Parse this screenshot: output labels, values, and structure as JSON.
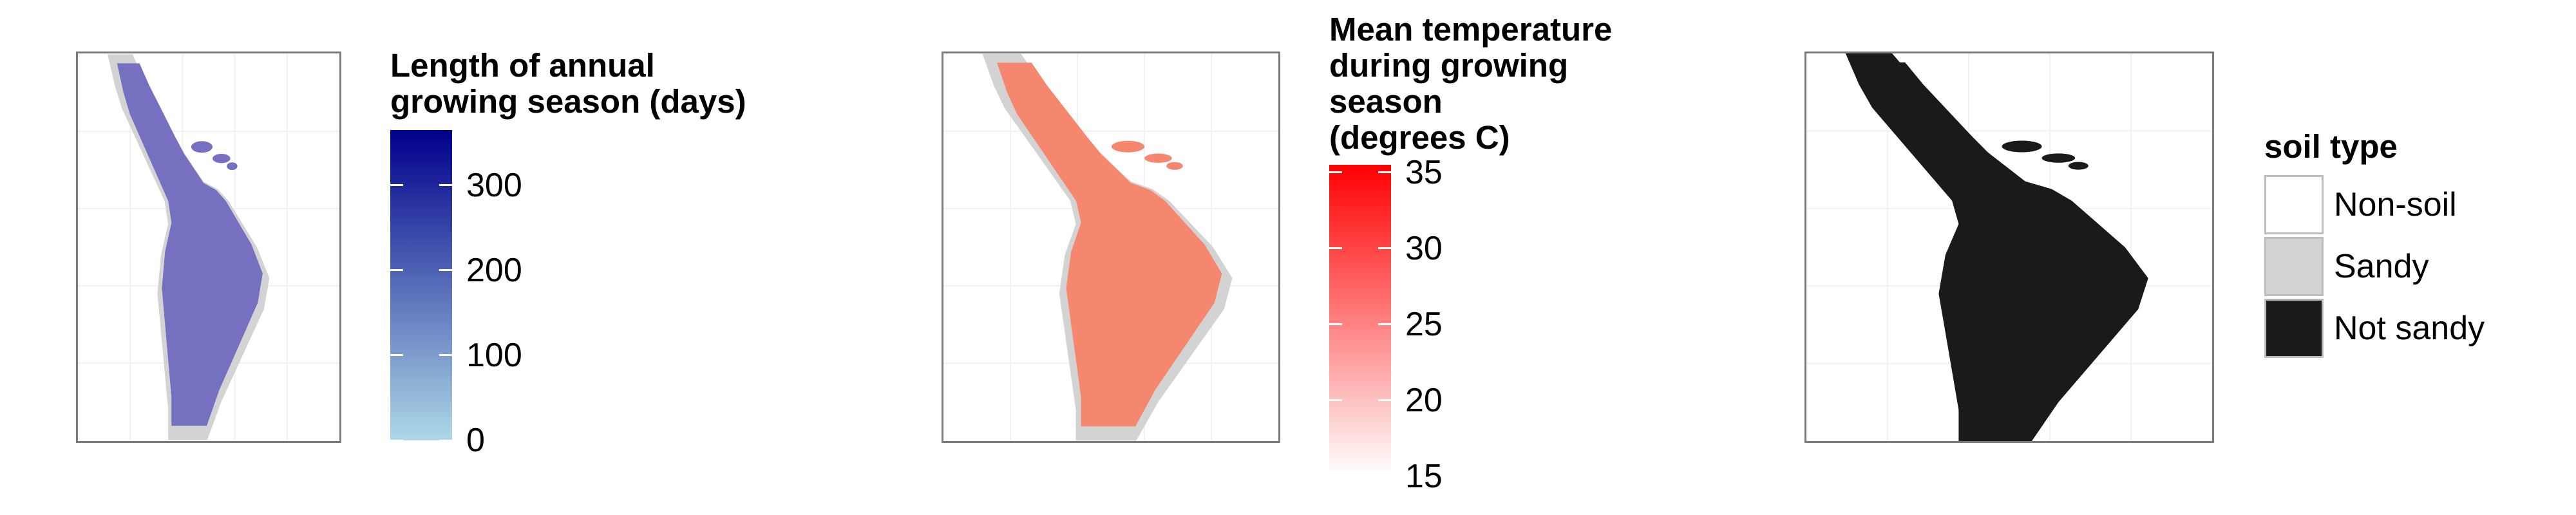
{
  "panels": [
    {
      "legend_title_lines": [
        "Length of annual",
        "growing season (days)"
      ],
      "scale": {
        "min": 0,
        "max": 365,
        "ticks": [
          0,
          100,
          200,
          300
        ],
        "low_color": "#add8e6",
        "high_color": "#00008b"
      },
      "map_color": "#7570c0"
    },
    {
      "legend_title_lines": [
        "Mean temperature",
        "during growing",
        "season",
        "(degrees C)"
      ],
      "scale": {
        "min": 15,
        "max": 35.5,
        "ticks": [
          15,
          20,
          25,
          30,
          35
        ],
        "low_color": "#ffffff",
        "high_color": "#ff0000"
      },
      "map_color": "#f5876f"
    },
    {
      "legend_title_lines": [
        "soil type"
      ],
      "categories": [
        {
          "label": "Non-soil",
          "color": "#ffffff"
        },
        {
          "label": "Sandy",
          "color": "#d3d3d3"
        },
        {
          "label": "Not sandy",
          "color": "#1a1a1a"
        }
      ],
      "map_color": "#1a1a1a"
    }
  ],
  "colors": {
    "land_gray": "#d3d3d3",
    "panel_border": "#7a7a7a",
    "grid": "#f0f0f0"
  }
}
